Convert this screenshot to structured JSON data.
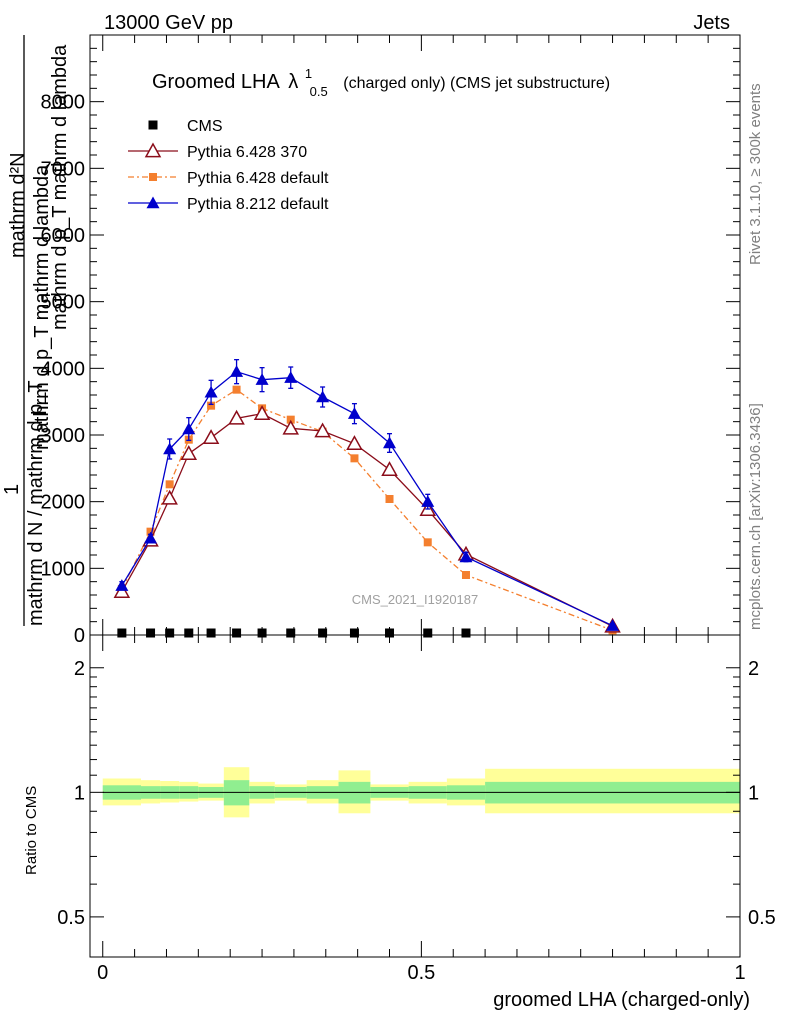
{
  "header": {
    "beam": "13000 GeV pp",
    "process": "Jets",
    "rivet_version": "Rivet 3.1.10, ≥ 300k events",
    "mcplots_ref": "mcplots.cern.ch [arXiv:1306.3436]",
    "analysis_id": "CMS_2021_I1920187"
  },
  "colors": {
    "cms": "#000000",
    "py6_370": "#8b0d1a",
    "py6_default": "#f47f2e",
    "py8_default": "#0000cc",
    "band_inner": "#90ee90",
    "band_outer": "#ffff99"
  },
  "chart_data": [
    {
      "type": "line",
      "title_main": "Groomed LHA",
      "title_symbol": "λ",
      "title_sup": "1",
      "title_sub": "0.5",
      "title_rest": "(charged only) (CMS jet substructure)",
      "ylabel_numerator": "mathrm d²N",
      "ylabel_denominator": "mathrm d p_T mathrm d lambda",
      "ylabel_frac_numerator": "1",
      "ylabel_frac_denominator": "mathrm d N / mathrm d p_T",
      "ylabel_mid": "mathrm d p_T mathrm d lambda",
      "ylim": [
        0,
        9000
      ],
      "yticks": [
        0,
        1000,
        2000,
        3000,
        4000,
        5000,
        6000,
        7000,
        8000
      ],
      "ytick_labels": [
        "0",
        "1000",
        "2000",
        "3000",
        "4000",
        "5000",
        "6000",
        "7000",
        "8000"
      ],
      "xlim": [
        -0.02,
        1.0
      ],
      "legend": [
        {
          "key": "cms",
          "label": "CMS"
        },
        {
          "key": "py6_370",
          "label": "Pythia 6.428 370"
        },
        {
          "key": "py6_default",
          "label": "Pythia 6.428 default"
        },
        {
          "key": "py8_default",
          "label": "Pythia 8.212 default"
        }
      ],
      "series": [
        {
          "name": "CMS",
          "key": "cms",
          "x": [
            0.03,
            0.075,
            0.105,
            0.135,
            0.17,
            0.21,
            0.25,
            0.295,
            0.345,
            0.395,
            0.45,
            0.51,
            0.57
          ],
          "values": [
            10,
            10,
            10,
            10,
            10,
            10,
            10,
            10,
            10,
            10,
            10,
            10,
            10
          ]
        },
        {
          "name": "Pythia 6.428 370",
          "key": "py6_370",
          "x": [
            0.03,
            0.075,
            0.105,
            0.135,
            0.17,
            0.21,
            0.25,
            0.295,
            0.345,
            0.395,
            0.45,
            0.51,
            0.57,
            0.8
          ],
          "values": [
            650,
            1420,
            2050,
            2720,
            2960,
            3250,
            3320,
            3100,
            3060,
            2870,
            2480,
            1880,
            1210,
            130
          ]
        },
        {
          "name": "Pythia 6.428 default",
          "key": "py6_default",
          "x": [
            0.03,
            0.075,
            0.105,
            0.135,
            0.17,
            0.21,
            0.25,
            0.295,
            0.345,
            0.395,
            0.45,
            0.51,
            0.57,
            0.8
          ],
          "values": [
            690,
            1550,
            2260,
            2930,
            3440,
            3680,
            3400,
            3230,
            3050,
            2650,
            2040,
            1390,
            900,
            70
          ]
        },
        {
          "name": "Pythia 8.212 default",
          "key": "py8_default",
          "x": [
            0.03,
            0.075,
            0.105,
            0.135,
            0.17,
            0.21,
            0.25,
            0.295,
            0.345,
            0.395,
            0.45,
            0.51,
            0.57,
            0.8
          ],
          "values": [
            740,
            1450,
            2790,
            3090,
            3640,
            3950,
            3830,
            3860,
            3570,
            3320,
            2880,
            2000,
            1170,
            140
          ],
          "errors": [
            60,
            60,
            150,
            170,
            180,
            180,
            180,
            160,
            150,
            150,
            140,
            110,
            70,
            30
          ]
        }
      ]
    },
    {
      "type": "area",
      "ylabel": "Ratio to CMS",
      "xlabel": "groomed LHA (charged-only)",
      "ylim": [
        0.4,
        2.4
      ],
      "yscale": "log",
      "yticks": [
        0.5,
        1,
        2
      ],
      "ytick_labels": [
        "0.5",
        "1",
        "2"
      ],
      "xlim": [
        -0.02,
        1.0
      ],
      "xticks": [
        0,
        0.5,
        1
      ],
      "xtick_labels": [
        "0",
        "0.5",
        "1"
      ],
      "bins": [
        {
          "lo": 0.0,
          "hi": 0.06,
          "inner": [
            0.96,
            1.04
          ],
          "outer": [
            0.93,
            1.08
          ]
        },
        {
          "lo": 0.06,
          "hi": 0.09,
          "inner": [
            0.965,
            1.035
          ],
          "outer": [
            0.94,
            1.07
          ]
        },
        {
          "lo": 0.09,
          "hi": 0.12,
          "inner": [
            0.965,
            1.035
          ],
          "outer": [
            0.945,
            1.065
          ]
        },
        {
          "lo": 0.12,
          "hi": 0.15,
          "inner": [
            0.965,
            1.035
          ],
          "outer": [
            0.95,
            1.06
          ]
        },
        {
          "lo": 0.15,
          "hi": 0.19,
          "inner": [
            0.97,
            1.03
          ],
          "outer": [
            0.955,
            1.05
          ]
        },
        {
          "lo": 0.19,
          "hi": 0.23,
          "inner": [
            0.93,
            1.07
          ],
          "outer": [
            0.87,
            1.15
          ]
        },
        {
          "lo": 0.23,
          "hi": 0.27,
          "inner": [
            0.965,
            1.035
          ],
          "outer": [
            0.94,
            1.06
          ]
        },
        {
          "lo": 0.27,
          "hi": 0.32,
          "inner": [
            0.97,
            1.03
          ],
          "outer": [
            0.955,
            1.045
          ]
        },
        {
          "lo": 0.32,
          "hi": 0.37,
          "inner": [
            0.965,
            1.035
          ],
          "outer": [
            0.94,
            1.07
          ]
        },
        {
          "lo": 0.37,
          "hi": 0.42,
          "inner": [
            0.94,
            1.06
          ],
          "outer": [
            0.89,
            1.13
          ]
        },
        {
          "lo": 0.42,
          "hi": 0.48,
          "inner": [
            0.97,
            1.03
          ],
          "outer": [
            0.955,
            1.045
          ]
        },
        {
          "lo": 0.48,
          "hi": 0.54,
          "inner": [
            0.965,
            1.035
          ],
          "outer": [
            0.94,
            1.06
          ]
        },
        {
          "lo": 0.54,
          "hi": 0.6,
          "inner": [
            0.96,
            1.04
          ],
          "outer": [
            0.93,
            1.08
          ]
        },
        {
          "lo": 0.6,
          "hi": 1.0,
          "inner": [
            0.94,
            1.06
          ],
          "outer": [
            0.89,
            1.14
          ]
        }
      ]
    }
  ]
}
